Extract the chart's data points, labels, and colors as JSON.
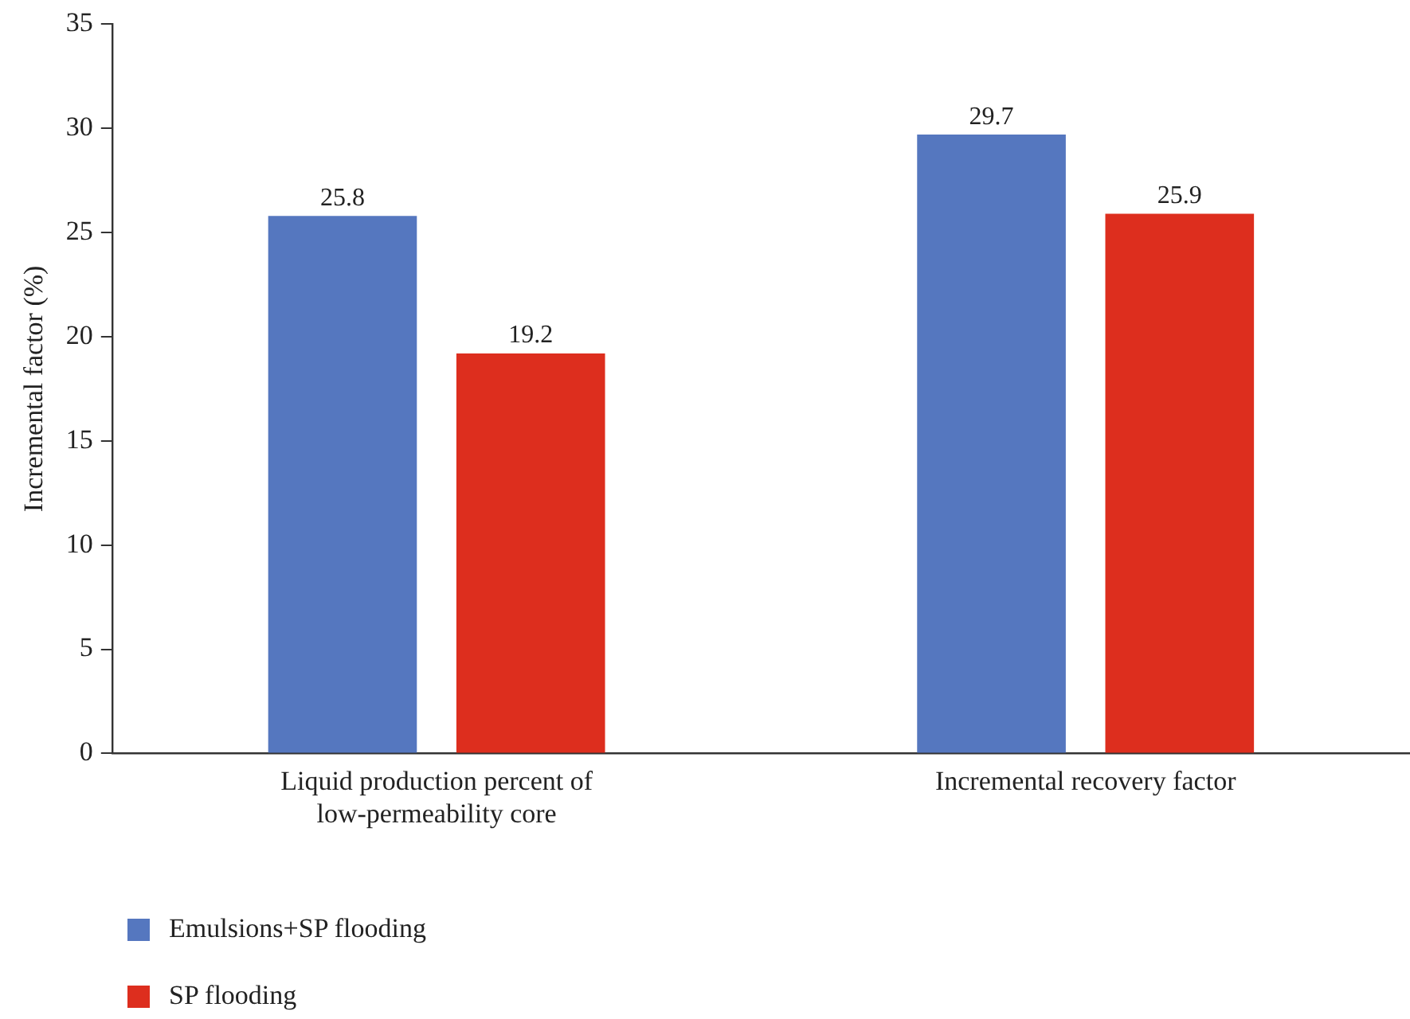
{
  "chart_data": {
    "type": "bar",
    "ylabel": "Incremental factor (%)",
    "categories": [
      "Liquid production percent of low-permeability core",
      "Incremental recovery factor"
    ],
    "series": [
      {
        "name": "Emulsions+SP flooding",
        "color": "#5577bf",
        "values": [
          25.8,
          29.7
        ]
      },
      {
        "name": "SP flooding",
        "color": "#dd2e1e",
        "values": [
          19.2,
          25.9
        ]
      }
    ],
    "ylim": [
      0,
      35
    ],
    "yticks": [
      0,
      5,
      10,
      15,
      20,
      25,
      30,
      35
    ],
    "grid": false,
    "legend": "bottom left",
    "data_labels": true
  }
}
